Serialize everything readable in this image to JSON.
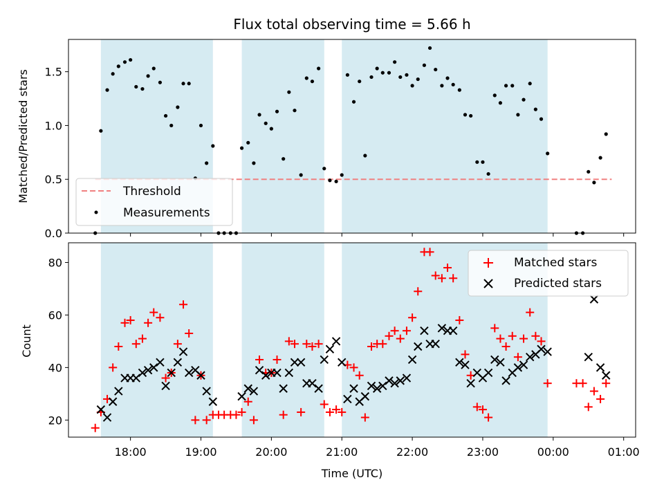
{
  "chart_data": [
    {
      "type": "scatter",
      "title": "Flux total observing time = 5.66 h",
      "xlabel": "",
      "ylabel": "Matched/Predicted stars",
      "ylim": [
        0,
        1.8
      ],
      "yticks": [
        0.0,
        0.5,
        1.0,
        1.5
      ],
      "ytick_labels": [
        "0.0",
        "0.5",
        "1.0",
        "1.5"
      ],
      "xlim_hours": [
        17.12,
        25.17
      ],
      "grid": false,
      "legend_position": "lower-left",
      "observing_windows_hours": [
        [
          17.58,
          19.17
        ],
        [
          19.58,
          20.75
        ],
        [
          21.0,
          23.92
        ]
      ],
      "threshold": {
        "name": "Threshold",
        "value": 0.5,
        "x_range_hours": [
          17.5,
          24.83
        ],
        "color": "#f08080"
      },
      "series": [
        {
          "name": "Measurements",
          "color": "#000000",
          "x_hours": [
            17.5,
            17.58,
            17.67,
            17.75,
            17.83,
            17.92,
            18.0,
            18.08,
            18.17,
            18.25,
            18.33,
            18.42,
            18.5,
            18.58,
            18.67,
            18.75,
            18.83,
            18.92,
            19.0,
            19.08,
            19.17,
            19.25,
            19.33,
            19.42,
            19.5,
            19.58,
            19.67,
            19.75,
            19.83,
            19.92,
            20.0,
            20.08,
            20.17,
            20.25,
            20.33,
            20.42,
            20.5,
            20.58,
            20.67,
            20.75,
            20.83,
            20.92,
            21.0,
            21.08,
            21.17,
            21.25,
            21.33,
            21.42,
            21.5,
            21.58,
            21.67,
            21.75,
            21.83,
            21.92,
            22.0,
            22.08,
            22.17,
            22.25,
            22.33,
            22.42,
            22.5,
            22.58,
            22.67,
            22.75,
            22.83,
            22.92,
            23.0,
            23.08,
            23.17,
            23.25,
            23.33,
            23.42,
            23.5,
            23.58,
            23.67,
            23.75,
            23.83,
            23.92,
            24.33,
            24.42,
            24.5,
            24.58,
            24.67,
            24.75
          ],
          "y": [
            0.0,
            0.95,
            1.33,
            1.48,
            1.55,
            1.59,
            1.61,
            1.36,
            1.34,
            1.46,
            1.53,
            1.4,
            1.09,
            1.0,
            1.17,
            1.39,
            1.39,
            0.51,
            1.0,
            0.65,
            0.81,
            0.0,
            0.0,
            0.0,
            0.0,
            0.79,
            0.84,
            0.65,
            1.1,
            1.02,
            0.97,
            1.13,
            0.69,
            1.31,
            1.14,
            0.54,
            1.44,
            1.41,
            1.53,
            0.6,
            0.49,
            0.48,
            0.54,
            1.47,
            1.22,
            1.41,
            0.72,
            1.45,
            1.53,
            1.49,
            1.49,
            1.59,
            1.45,
            1.47,
            1.37,
            1.43,
            1.56,
            1.72,
            1.52,
            1.37,
            1.44,
            1.38,
            1.33,
            1.1,
            1.09,
            0.66,
            0.66,
            0.55,
            1.28,
            1.21,
            1.37,
            1.37,
            1.1,
            1.24,
            1.39,
            1.15,
            1.06,
            0.74,
            0.0,
            0.0,
            0.57,
            0.47,
            0.7,
            0.92
          ]
        }
      ]
    },
    {
      "type": "scatter",
      "title": "",
      "xlabel": "Time (UTC)",
      "ylabel": "Count",
      "ylim": [
        13.5,
        87.5
      ],
      "yticks": [
        20,
        40,
        60,
        80
      ],
      "ytick_labels": [
        "20",
        "40",
        "60",
        "80"
      ],
      "xticks_hours": [
        18,
        19,
        20,
        21,
        22,
        23,
        24,
        25
      ],
      "xtick_labels": [
        "18:00",
        "19:00",
        "20:00",
        "21:00",
        "22:00",
        "23:00",
        "00:00",
        "01:00"
      ],
      "xlim_hours": [
        17.12,
        25.17
      ],
      "grid": false,
      "legend_position": "upper-right",
      "observing_windows_hours": [
        [
          17.58,
          19.17
        ],
        [
          19.58,
          20.75
        ],
        [
          21.0,
          23.92
        ]
      ],
      "series": [
        {
          "name": "Matched stars",
          "color": "#ff0000",
          "marker": "plus",
          "x_hours": [
            17.5,
            17.58,
            17.67,
            17.75,
            17.83,
            17.92,
            18.0,
            18.08,
            18.17,
            18.25,
            18.33,
            18.42,
            18.5,
            18.58,
            18.67,
            18.75,
            18.83,
            18.92,
            19.0,
            19.08,
            19.17,
            19.25,
            19.33,
            19.42,
            19.5,
            19.58,
            19.67,
            19.75,
            19.83,
            19.92,
            20.0,
            20.08,
            20.17,
            20.25,
            20.33,
            20.42,
            20.5,
            20.58,
            20.67,
            20.75,
            20.83,
            20.92,
            21.0,
            21.08,
            21.17,
            21.25,
            21.33,
            21.42,
            21.5,
            21.58,
            21.67,
            21.75,
            21.83,
            21.92,
            22.0,
            22.08,
            22.17,
            22.25,
            22.33,
            22.42,
            22.5,
            22.58,
            22.67,
            22.75,
            22.83,
            22.92,
            23.0,
            23.08,
            23.17,
            23.25,
            23.33,
            23.42,
            23.5,
            23.58,
            23.67,
            23.75,
            23.83,
            23.92,
            24.33,
            24.42,
            24.5,
            24.58,
            24.67,
            24.75
          ],
          "y": [
            17,
            23,
            28,
            40,
            48,
            57,
            58,
            49,
            51,
            57,
            61,
            59,
            36,
            38,
            49,
            64,
            53,
            20,
            37,
            20,
            22,
            22,
            22,
            22,
            22,
            23,
            27,
            20,
            43,
            38,
            38,
            43,
            22,
            50,
            49,
            23,
            49,
            48,
            49,
            26,
            23,
            24,
            23,
            41,
            40,
            37,
            21,
            48,
            49,
            49,
            52,
            54,
            51,
            54,
            59,
            69,
            84,
            84,
            75,
            74,
            78,
            74,
            58,
            45,
            37,
            25,
            24,
            21,
            55,
            51,
            48,
            52,
            44,
            51,
            61,
            52,
            50,
            34,
            34,
            34,
            25,
            31,
            28,
            34
          ]
        },
        {
          "name": "Predicted stars",
          "color": "#000000",
          "marker": "x",
          "x_hours": [
            17.58,
            17.67,
            17.75,
            17.83,
            17.92,
            18.0,
            18.08,
            18.17,
            18.25,
            18.33,
            18.42,
            18.5,
            18.58,
            18.67,
            18.75,
            18.83,
            18.92,
            19.0,
            19.08,
            19.17,
            19.58,
            19.67,
            19.75,
            19.83,
            19.92,
            20.0,
            20.08,
            20.17,
            20.25,
            20.33,
            20.42,
            20.5,
            20.58,
            20.67,
            20.75,
            20.83,
            20.92,
            21.0,
            21.08,
            21.17,
            21.25,
            21.33,
            21.42,
            21.5,
            21.58,
            21.67,
            21.75,
            21.83,
            21.92,
            22.0,
            22.08,
            22.17,
            22.25,
            22.33,
            22.42,
            22.5,
            22.58,
            22.67,
            22.75,
            22.83,
            22.92,
            23.0,
            23.08,
            23.17,
            23.25,
            23.33,
            23.42,
            23.5,
            23.58,
            23.67,
            23.75,
            23.83,
            23.92,
            24.5,
            24.58,
            24.67,
            24.75
          ],
          "y": [
            24,
            21,
            27,
            31,
            36,
            36,
            36,
            38,
            39,
            40,
            42,
            33,
            38,
            42,
            46,
            38,
            39,
            37,
            31,
            27,
            29,
            32,
            31,
            39,
            37,
            38,
            38,
            32,
            38,
            42,
            42,
            34,
            34,
            32,
            43,
            47,
            50,
            42,
            28,
            32,
            27,
            29,
            33,
            32,
            33,
            35,
            34,
            35,
            36,
            43,
            48,
            54,
            49,
            49,
            55,
            54,
            54,
            42,
            41,
            34,
            38,
            36,
            38,
            43,
            42,
            35,
            38,
            40,
            41,
            44,
            45,
            47,
            46,
            44,
            66,
            40,
            37
          ]
        }
      ]
    }
  ]
}
